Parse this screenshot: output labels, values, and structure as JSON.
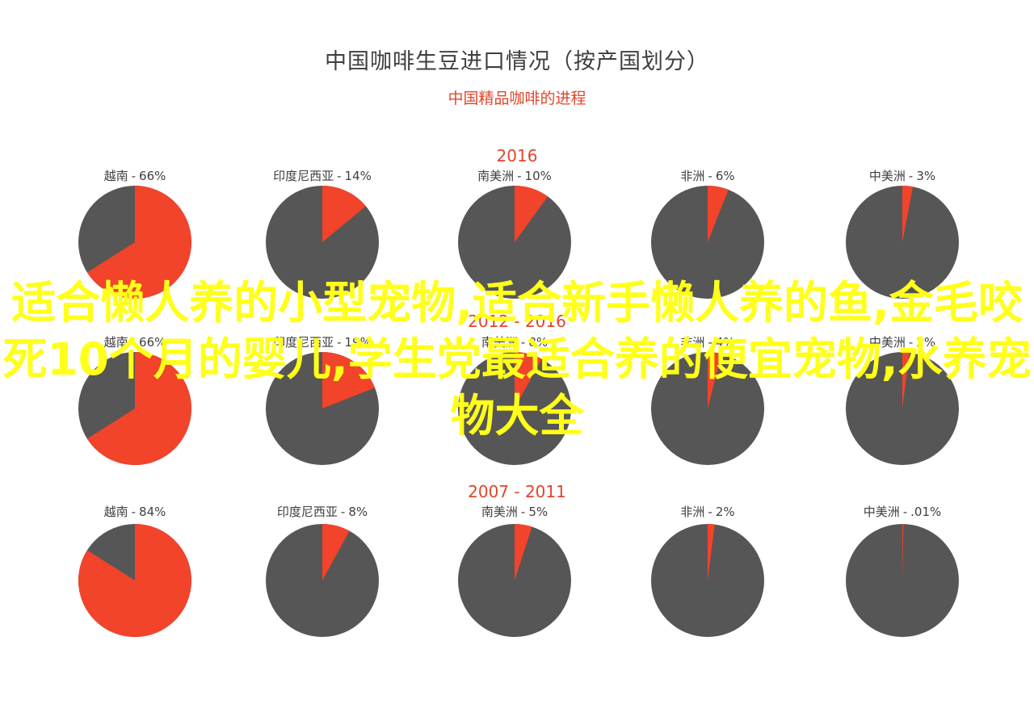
{
  "chart_data": {
    "type": "pie",
    "title": "中国咖啡生豆进口情况（按产国划分）",
    "subtitle": "中国精品咖啡的进程",
    "colors": {
      "share": "#f2432b",
      "rest": "#565656"
    },
    "groups": [
      {
        "label": "2016",
        "pies": [
          {
            "country": "越南",
            "value_text": "66%",
            "value": 66
          },
          {
            "country": "印度尼西亚",
            "value_text": "14%",
            "value": 14
          },
          {
            "country": "南美洲",
            "value_text": "10%",
            "value": 10
          },
          {
            "country": "非洲",
            "value_text": "6%",
            "value": 6
          },
          {
            "country": "中美洲",
            "value_text": "3%",
            "value": 3
          }
        ]
      },
      {
        "label": "2012 - 2016",
        "pies": [
          {
            "country": "越南",
            "value_text": "66%",
            "value": 66
          },
          {
            "country": "印度尼西亚",
            "value_text": "19%",
            "value": 19
          },
          {
            "country": "南美洲",
            "value_text": "8%",
            "value": 8
          },
          {
            "country": "非洲",
            "value_text": "4%",
            "value": 4
          },
          {
            "country": "中美洲",
            "value_text": "2%",
            "value": 2
          }
        ]
      },
      {
        "label": "2007 - 2011",
        "pies": [
          {
            "country": "越南",
            "value_text": "84%",
            "value": 84
          },
          {
            "country": "印度尼西亚",
            "value_text": "8%",
            "value": 8
          },
          {
            "country": "南美洲",
            "value_text": "5%",
            "value": 5
          },
          {
            "country": "非洲",
            "value_text": "2%",
            "value": 2
          },
          {
            "country": "中美洲",
            "value_text": ".01%",
            "value": 0.01
          }
        ]
      }
    ]
  },
  "watermark": "适合懒人养的小型宠物,适合新手懒人养的鱼,金毛咬死10个月的婴儿,学生党最适合养的便宜宠物,水养宠物大全"
}
